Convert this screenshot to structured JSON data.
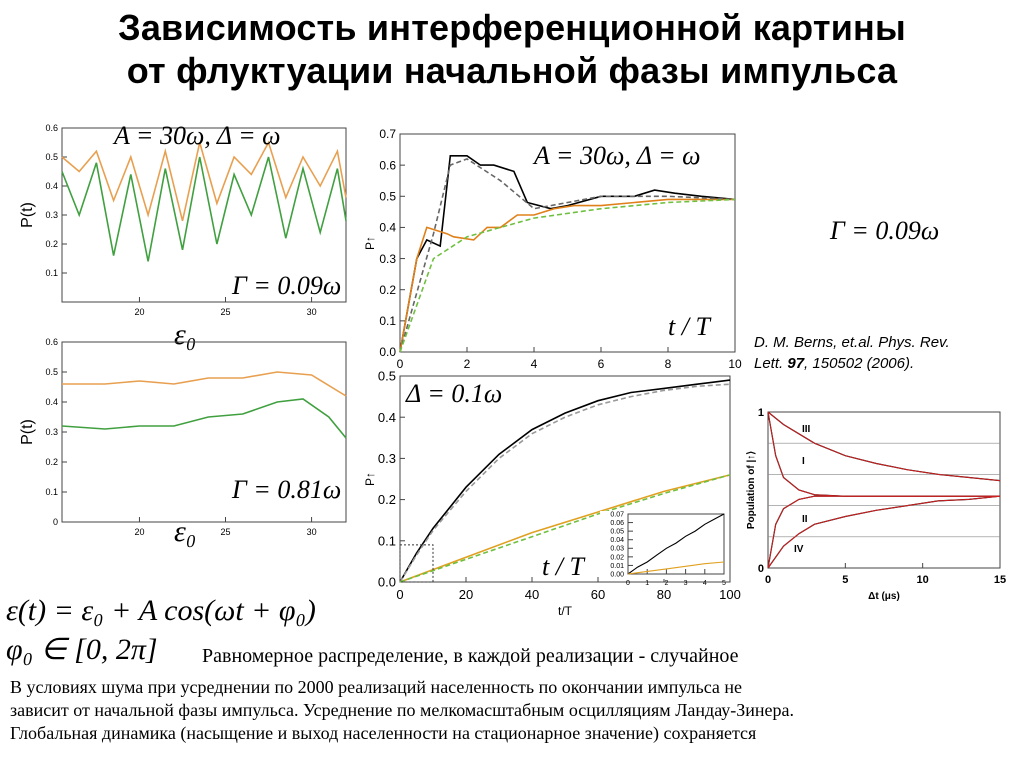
{
  "title": {
    "line1": "Зависимость интерференционной картины",
    "line2": "от флуктуации начальной фазы импульса"
  },
  "labels": {
    "params_30": "A = 30ω, Δ = ω",
    "params_30_right": "A = 30ω, Δ = ω",
    "gamma_009": "Γ = 0.09ω",
    "gamma_081": "Γ = 0.81ω",
    "gamma_009_right": "Γ = 0.09ω",
    "eps0_top": "ε₀",
    "eps0_bottom": "ε₀",
    "delta_01": "Δ = 0.1ω",
    "t_over_T_top": "t / T",
    "t_over_T_bottom": "t / T",
    "eq_eps": "ε(t) = ε₀ + A cos(ωt + φ₀)",
    "eq_phi": "φ₀ ∈ [0, 2π]"
  },
  "reference": {
    "line1": "D. M. Berns, et.al. Phys. Rev.",
    "line2_a": "Lett. ",
    "line2_b": "97",
    "line2_c": ", 150502 (2006)."
  },
  "body_text": {
    "distribution": "Равномерное распределение, в каждой реализации - случайное",
    "p1": "В условиях шума при усреднении по 2000 реализаций населенность по окончании импульса не",
    "p2": "зависит от начальной фазы импульса. Усреднение по мелкомасштабным осцилляциям Ландау-Зинера.",
    "p3": "Глобальная динамика (насыщение и выход населенности на стационарное значение) сохраняется"
  },
  "chart_data": [
    {
      "type": "line",
      "ylabel": "P(t)",
      "x_ticks": [
        "20",
        "25",
        "30"
      ],
      "y_ticks": [
        "0.1",
        "0.2",
        "0.3",
        "0.4",
        "0.5",
        "0.6"
      ],
      "xlim": [
        15.5,
        32
      ],
      "ylim": [
        0,
        0.6
      ],
      "series": [
        {
          "color": "#e8a050",
          "x": [
            15.5,
            16.5,
            17.5,
            18.5,
            19.5,
            20.5,
            21.5,
            22.5,
            23.5,
            24.5,
            25.5,
            26.5,
            27.5,
            28.5,
            29.5,
            30.5,
            31.5,
            32
          ],
          "values": [
            0.5,
            0.45,
            0.52,
            0.35,
            0.5,
            0.3,
            0.52,
            0.28,
            0.55,
            0.34,
            0.5,
            0.44,
            0.55,
            0.36,
            0.5,
            0.4,
            0.52,
            0.36
          ]
        },
        {
          "color": "#40a040",
          "x": [
            15.5,
            16.5,
            17.5,
            18.5,
            19.5,
            20.5,
            21.5,
            22.5,
            23.5,
            24.5,
            25.5,
            26.5,
            27.5,
            28.5,
            29.5,
            30.5,
            31.5,
            32
          ],
          "values": [
            0.45,
            0.3,
            0.48,
            0.16,
            0.44,
            0.14,
            0.46,
            0.18,
            0.5,
            0.2,
            0.44,
            0.3,
            0.5,
            0.22,
            0.46,
            0.24,
            0.46,
            0.28
          ]
        }
      ]
    },
    {
      "type": "line",
      "ylabel": "P(t)",
      "x_ticks": [
        "20",
        "25",
        "30"
      ],
      "y_ticks": [
        "0",
        "0.1",
        "0.2",
        "0.3",
        "0.4",
        "0.5",
        "0.6"
      ],
      "xlim": [
        15.5,
        32
      ],
      "ylim": [
        0,
        0.6
      ],
      "series": [
        {
          "color": "#e8a050",
          "x": [
            15.5,
            18,
            20,
            22,
            24,
            26,
            28,
            30,
            32
          ],
          "values": [
            0.46,
            0.46,
            0.47,
            0.46,
            0.48,
            0.48,
            0.5,
            0.49,
            0.42
          ]
        },
        {
          "color": "#40a040",
          "x": [
            15.5,
            18,
            20,
            22,
            24,
            26,
            28,
            29.5,
            31,
            32
          ],
          "values": [
            0.32,
            0.31,
            0.32,
            0.32,
            0.35,
            0.36,
            0.4,
            0.41,
            0.35,
            0.28
          ]
        }
      ]
    },
    {
      "type": "line",
      "ylabel": "P↑",
      "x_ticks": [
        "0",
        "2",
        "4",
        "6",
        "8",
        "10"
      ],
      "y_ticks": [
        "0.0",
        "0.1",
        "0.2",
        "0.3",
        "0.4",
        "0.5",
        "0.6",
        "0.7"
      ],
      "xlim": [
        0,
        10
      ],
      "ylim": [
        0,
        0.7
      ],
      "series": [
        {
          "color": "#000000",
          "x": [
            0,
            0.5,
            0.8,
            1.2,
            1.5,
            2,
            2.4,
            2.8,
            3.4,
            3.8,
            4.5,
            5,
            6,
            7,
            7.6,
            8.2,
            9,
            10
          ],
          "values": [
            0,
            0.3,
            0.36,
            0.34,
            0.63,
            0.63,
            0.6,
            0.6,
            0.58,
            0.48,
            0.46,
            0.47,
            0.5,
            0.5,
            0.52,
            0.51,
            0.5,
            0.49
          ]
        },
        {
          "color": "#e0801a",
          "x": [
            0,
            0.5,
            0.8,
            1.4,
            1.6,
            2.2,
            2.6,
            3,
            3.5,
            4,
            4.6,
            5.2,
            6,
            7,
            8,
            9,
            10
          ],
          "values": [
            0,
            0.3,
            0.4,
            0.38,
            0.37,
            0.36,
            0.4,
            0.4,
            0.44,
            0.44,
            0.46,
            0.47,
            0.47,
            0.48,
            0.49,
            0.49,
            0.49
          ]
        },
        {
          "color": "#666666",
          "dash": true,
          "x": [
            0,
            1,
            1.5,
            2,
            3,
            4,
            5,
            6,
            8,
            10
          ],
          "values": [
            0,
            0.38,
            0.6,
            0.62,
            0.55,
            0.46,
            0.48,
            0.5,
            0.5,
            0.49
          ]
        },
        {
          "color": "#70c040",
          "dash": true,
          "x": [
            0,
            1,
            2,
            3,
            4,
            6,
            8,
            10
          ],
          "values": [
            0,
            0.3,
            0.37,
            0.4,
            0.43,
            0.46,
            0.48,
            0.49
          ]
        }
      ]
    },
    {
      "type": "line",
      "xlabel": "t/T",
      "ylabel": "P↑",
      "x_ticks": [
        "0",
        "20",
        "40",
        "60",
        "80",
        "100"
      ],
      "y_ticks": [
        "0.0",
        "0.1",
        "0.2",
        "0.3",
        "0.4",
        "0.5"
      ],
      "xlim": [
        0,
        100
      ],
      "ylim": [
        0,
        0.5
      ],
      "series": [
        {
          "color": "#000000",
          "x": [
            0,
            5,
            10,
            20,
            30,
            40,
            50,
            60,
            70,
            80,
            90,
            100
          ],
          "values": [
            0,
            0.07,
            0.13,
            0.23,
            0.31,
            0.37,
            0.41,
            0.44,
            0.46,
            0.47,
            0.48,
            0.49
          ]
        },
        {
          "color": "#999999",
          "dash": true,
          "x": [
            0,
            5,
            10,
            20,
            30,
            40,
            50,
            60,
            70,
            80,
            90,
            100
          ],
          "values": [
            0,
            0.065,
            0.125,
            0.22,
            0.3,
            0.36,
            0.4,
            0.43,
            0.45,
            0.465,
            0.475,
            0.48
          ]
        },
        {
          "color": "#e0a020",
          "x": [
            0,
            20,
            40,
            60,
            80,
            100
          ],
          "values": [
            0,
            0.06,
            0.12,
            0.17,
            0.22,
            0.26
          ]
        },
        {
          "color": "#70c040",
          "dash": true,
          "x": [
            0,
            20,
            40,
            60,
            80,
            100
          ],
          "values": [
            0,
            0.055,
            0.11,
            0.165,
            0.215,
            0.26
          ]
        }
      ],
      "inset": {
        "x_ticks": [
          "0",
          "1",
          "2",
          "3",
          "4",
          "5"
        ],
        "y_ticks": [
          "0.00",
          "0.01",
          "0.02",
          "0.03",
          "0.04",
          "0.05",
          "0.06",
          "0.07"
        ],
        "xlim": [
          0,
          5
        ],
        "ylim": [
          0,
          0.07
        ],
        "series": [
          {
            "color": "#000000",
            "x": [
              0,
              0.5,
              1,
              1.5,
              2,
              2.5,
              3,
              3.5,
              4,
              4.5,
              5
            ],
            "values": [
              0,
              0.008,
              0.014,
              0.022,
              0.03,
              0.036,
              0.044,
              0.05,
              0.058,
              0.064,
              0.07
            ]
          },
          {
            "color": "#e0a020",
            "x": [
              0,
              1,
              2,
              3,
              4,
              5
            ],
            "values": [
              0,
              0.003,
              0.006,
              0.009,
              0.012,
              0.014
            ]
          }
        ]
      }
    },
    {
      "type": "line",
      "xlabel": "Δt (μs)",
      "ylabel": "Population of |↑⟩",
      "x_ticks": [
        "0",
        "5",
        "10",
        "15"
      ],
      "y_ticks": [
        "0",
        "1"
      ],
      "xlim": [
        0,
        15
      ],
      "ylim": [
        0,
        1
      ],
      "annotations": [
        "III",
        "I",
        "II",
        "IV"
      ],
      "series": [
        {
          "name": "III",
          "color": "#000000",
          "x": [
            0,
            1,
            2,
            3,
            5,
            7,
            9,
            11,
            13,
            15
          ],
          "values": [
            1,
            0.92,
            0.86,
            0.8,
            0.72,
            0.67,
            0.63,
            0.6,
            0.58,
            0.56
          ]
        },
        {
          "name": "I",
          "color": "#000000",
          "x": [
            0,
            0.5,
            1,
            2,
            3,
            5,
            7,
            10,
            15
          ],
          "values": [
            1,
            0.72,
            0.58,
            0.5,
            0.47,
            0.46,
            0.46,
            0.46,
            0.46
          ]
        },
        {
          "name": "II",
          "color": "#000000",
          "x": [
            0,
            1,
            2,
            3,
            5,
            7,
            9,
            11,
            13,
            15
          ],
          "values": [
            0,
            0.14,
            0.22,
            0.28,
            0.33,
            0.37,
            0.4,
            0.43,
            0.44,
            0.46
          ]
        },
        {
          "name": "IV",
          "color": "#000000",
          "x": [
            0,
            0.5,
            1,
            2,
            3,
            5,
            7,
            10,
            15
          ],
          "values": [
            0,
            0.28,
            0.38,
            0.44,
            0.46,
            0.46,
            0.46,
            0.46,
            0.46
          ]
        }
      ]
    }
  ]
}
